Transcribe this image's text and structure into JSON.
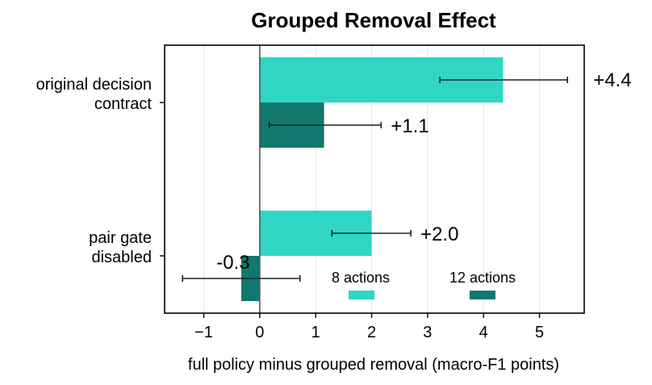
{
  "chart_data": {
    "type": "bar",
    "orientation": "horizontal",
    "title": "Grouped Removal Effect",
    "xlabel": "full policy minus grouped removal (macro-F1 points)",
    "ylabel": "",
    "xlim": [
      -1.7,
      5.8
    ],
    "xticks": [
      -1,
      0,
      1,
      2,
      3,
      4,
      5
    ],
    "xtick_labels": [
      "−1",
      "0",
      "1",
      "2",
      "3",
      "4",
      "5"
    ],
    "grid": "vertical",
    "categories": [
      [
        "original decision",
        "contract"
      ],
      [
        "pair gate",
        "disabled"
      ]
    ],
    "series": [
      {
        "name": "8 actions",
        "color": "#2ed6c3",
        "values": [
          4.35,
          2.0
        ],
        "error_low": [
          3.22,
          1.29
        ],
        "error_high": [
          5.5,
          2.7
        ],
        "labels": [
          "+4.4",
          "+2.0"
        ]
      },
      {
        "name": "12 actions",
        "color": "#11786e",
        "values": [
          1.15,
          -0.33
        ],
        "error_low": [
          0.17,
          -1.38
        ],
        "error_high": [
          2.17,
          0.72
        ],
        "labels": [
          "+1.1",
          "-0.3"
        ]
      }
    ],
    "legend_placement": "lower-right"
  }
}
